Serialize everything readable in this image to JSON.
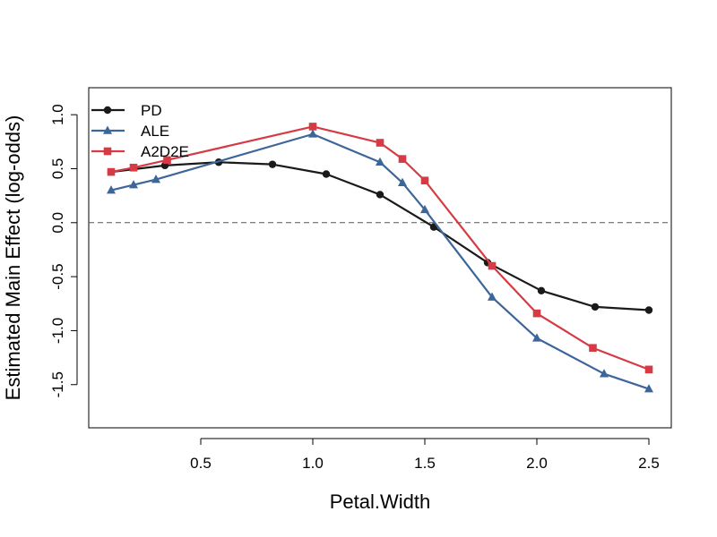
{
  "chart_data": {
    "type": "line",
    "title": "",
    "xlabel": "Petal.Width",
    "ylabel": "Estimated Main Effect (log-odds)",
    "xlim": [
      0.0,
      2.6
    ],
    "ylim": [
      -1.9,
      1.25
    ],
    "xticks": [
      0.5,
      1.0,
      1.5,
      2.0,
      2.5
    ],
    "xtick_labels": [
      "0.5",
      "1.0",
      "1.5",
      "2.0",
      "2.5"
    ],
    "yticks": [
      1.0,
      0.5,
      0.0,
      -0.5,
      -1.0,
      -1.5
    ],
    "ytick_labels": [
      "1.0",
      "0.5",
      "0.0",
      "-0.5",
      "-1.0",
      "-1.5"
    ],
    "reference_line": {
      "y": 0.0,
      "style": "dashed"
    },
    "legend_position": "top-left",
    "series": [
      {
        "name": "PD",
        "color": "#1a1a1a",
        "marker": "circle",
        "x": [
          0.1,
          0.34,
          0.58,
          0.82,
          1.06,
          1.3,
          1.54,
          1.78,
          2.02,
          2.26,
          2.5
        ],
        "y": [
          0.47,
          0.53,
          0.56,
          0.54,
          0.45,
          0.26,
          -0.04,
          -0.37,
          -0.63,
          -0.78,
          -0.81
        ]
      },
      {
        "name": "ALE",
        "color": "#3c6699",
        "marker": "triangle",
        "x": [
          0.1,
          0.2,
          0.3,
          1.0,
          1.3,
          1.4,
          1.5,
          1.8,
          2.0,
          2.3,
          2.5
        ],
        "y": [
          0.3,
          0.35,
          0.4,
          0.82,
          0.56,
          0.37,
          0.12,
          -0.69,
          -1.07,
          -1.4,
          -1.54
        ]
      },
      {
        "name": "A2D2E",
        "color": "#d63a45",
        "marker": "square",
        "x": [
          0.1,
          0.2,
          0.35,
          1.0,
          1.3,
          1.4,
          1.5,
          1.8,
          2.0,
          2.25,
          2.5
        ],
        "y": [
          0.47,
          0.51,
          0.58,
          0.89,
          0.74,
          0.59,
          0.39,
          -0.4,
          -0.84,
          -1.16,
          -1.36
        ]
      }
    ]
  }
}
